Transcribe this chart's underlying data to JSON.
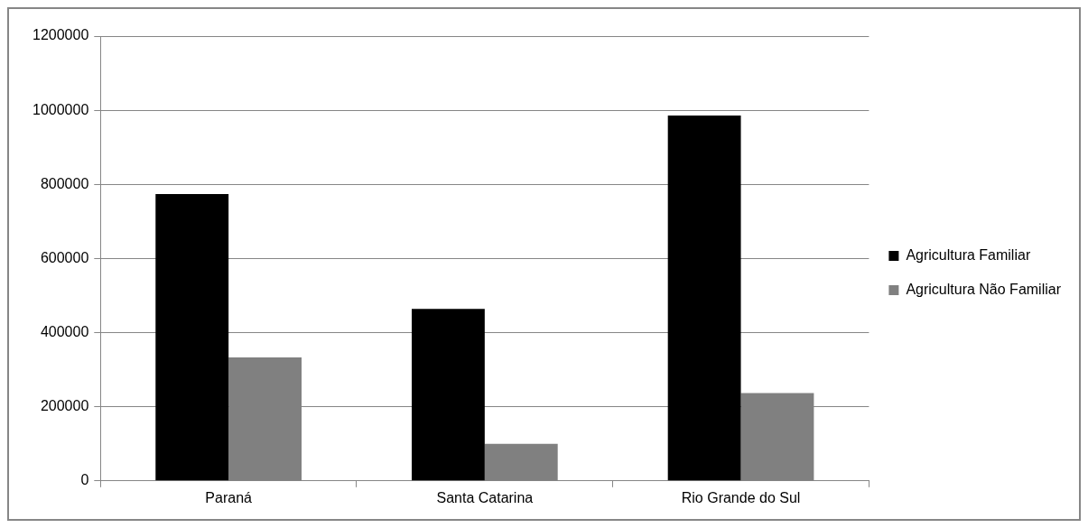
{
  "chart_data": {
    "type": "bar",
    "categories": [
      "Paraná",
      "Santa Catarina",
      "Rio Grande do Sul"
    ],
    "series": [
      {
        "name": "Agricultura Familiar",
        "color": "#000000",
        "values": [
          774000,
          464000,
          986000
        ]
      },
      {
        "name": "Agricultura Não Familiar",
        "color": "#808080",
        "values": [
          333000,
          100000,
          237000
        ]
      }
    ],
    "ylim": [
      0,
      1200000
    ],
    "yticks": [
      0,
      200000,
      400000,
      600000,
      800000,
      1000000,
      1200000
    ],
    "grid": "y",
    "legend": "right"
  }
}
